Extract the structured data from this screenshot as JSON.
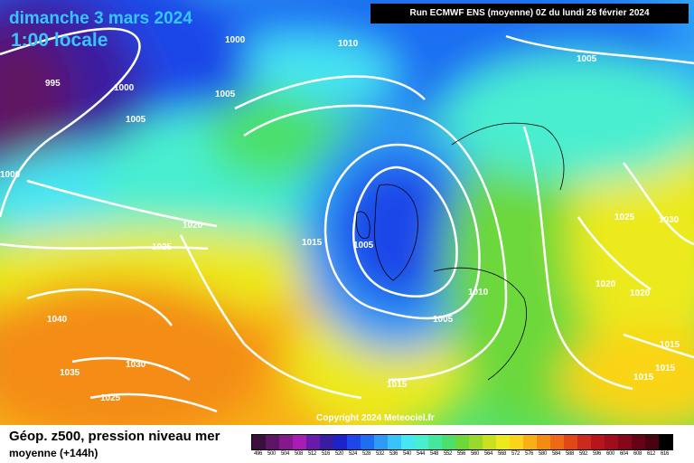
{
  "header": {
    "date": "dimanche 3 mars 2024",
    "time": "1:00 locale",
    "run": "Run ECMWF ENS (moyenne) 0Z du lundi 26 février 2024"
  },
  "copyright": "Copyright 2024 Meteociel.fr",
  "footer": {
    "title": "Géop. z500, pression niveau mer",
    "subtitle": "moyenne  (+144h)"
  },
  "isobar_labels": [
    "995",
    "1000",
    "1000",
    "1000",
    "1005",
    "1005",
    "1010",
    "1005",
    "1020",
    "1025",
    "1015",
    "1005",
    "1010",
    "1005",
    "1040",
    "1035",
    "1030",
    "1025",
    "1015",
    "1025",
    "1030",
    "1020",
    "1020",
    "1015",
    "1015",
    "1015"
  ],
  "legend": {
    "labels": [
      "496",
      "500",
      "504",
      "508",
      "512",
      "516",
      "520",
      "524",
      "528",
      "532",
      "536",
      "540",
      "544",
      "548",
      "552",
      "556",
      "560",
      "564",
      "568",
      "572",
      "576",
      "580",
      "584",
      "588",
      "592",
      "596",
      "600",
      "604",
      "608",
      "612",
      "616"
    ],
    "colors": [
      "#3a0f3e",
      "#5e1464",
      "#84188c",
      "#a81cb6",
      "#6a1aa8",
      "#3a1ca0",
      "#1a22c8",
      "#1e46e8",
      "#1f6ef2",
      "#2f9af6",
      "#38c4fa",
      "#46e6f2",
      "#48eed0",
      "#44e89c",
      "#4ce06a",
      "#6cd83a",
      "#9ad82c",
      "#c8e020",
      "#ecea1a",
      "#fad416",
      "#f8b016",
      "#f48c14",
      "#ee6a14",
      "#e04818",
      "#cc2a1c",
      "#b8141e",
      "#a00e1c",
      "#84081a",
      "#660416",
      "#480210",
      "#000000"
    ]
  }
}
